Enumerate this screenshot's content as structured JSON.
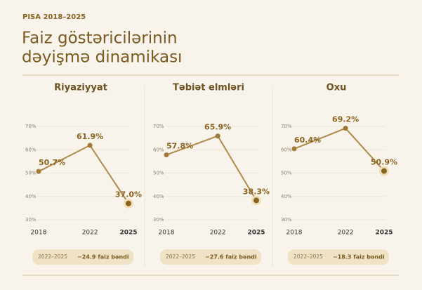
{
  "header": {
    "kicker": "PISA 2018–2025",
    "title_lines": [
      "Faiz göstəricilərinin",
      "dəyişmə dinamikası"
    ]
  },
  "chart_data": [
    {
      "type": "line",
      "title": "Riyaziyyat",
      "x": [
        2018,
        2022,
        2025
      ],
      "values": [
        50.7,
        61.9,
        37.0
      ],
      "value_labels": [
        "50.7%",
        "61.9%",
        "37.0%"
      ],
      "color": "#b08a4a",
      "xlim": [
        2018,
        2025
      ],
      "xticks": [
        2018,
        2022,
        2025
      ],
      "ylim": [
        30,
        70
      ],
      "yticks": [
        {
          "value": 30,
          "label": "30%"
        },
        {
          "value": 40,
          "label": "40%"
        },
        {
          "value": 50,
          "label": "50%"
        },
        {
          "value": 60,
          "label": "60%"
        },
        {
          "value": 70,
          "label": "70%"
        }
      ],
      "grid": true,
      "annotation": {
        "period": "2022–2025",
        "change": "−24.9 faiz bəndi"
      }
    },
    {
      "type": "line",
      "title": "Təbiət elmləri",
      "x": [
        2018,
        2022,
        2025
      ],
      "values": [
        57.8,
        65.9,
        38.3
      ],
      "value_labels": [
        "57.8%",
        "65.9%",
        "38.3%"
      ],
      "color": "#b08a4a",
      "xlim": [
        2018,
        2025
      ],
      "xticks": [
        2018,
        2022,
        2025
      ],
      "ylim": [
        30,
        70
      ],
      "yticks": [
        {
          "value": 30,
          "label": "30%"
        },
        {
          "value": 40,
          "label": "40%"
        },
        {
          "value": 50,
          "label": "50%"
        },
        {
          "value": 60,
          "label": "60%"
        },
        {
          "value": 70,
          "label": "70%"
        }
      ],
      "grid": true,
      "annotation": {
        "period": "2022–2025",
        "change": "−27.6 faiz bəndi"
      }
    },
    {
      "type": "line",
      "title": "Oxu",
      "x": [
        2018,
        2022,
        2025
      ],
      "values": [
        60.4,
        69.2,
        50.9
      ],
      "value_labels": [
        "60.4%",
        "69.2%",
        "50.9%"
      ],
      "color": "#b08a4a",
      "xlim": [
        2018,
        2025
      ],
      "xticks": [
        2018,
        2022,
        2025
      ],
      "ylim": [
        30,
        70
      ],
      "yticks": [
        {
          "value": 30,
          "label": "30%"
        },
        {
          "value": 40,
          "label": "40%"
        },
        {
          "value": 50,
          "label": "50%"
        },
        {
          "value": 60,
          "label": "60%"
        },
        {
          "value": 70,
          "label": "70%"
        }
      ],
      "grid": true,
      "annotation": {
        "period": "2022–2025",
        "change": "−18.3 faiz bəndi"
      }
    }
  ]
}
